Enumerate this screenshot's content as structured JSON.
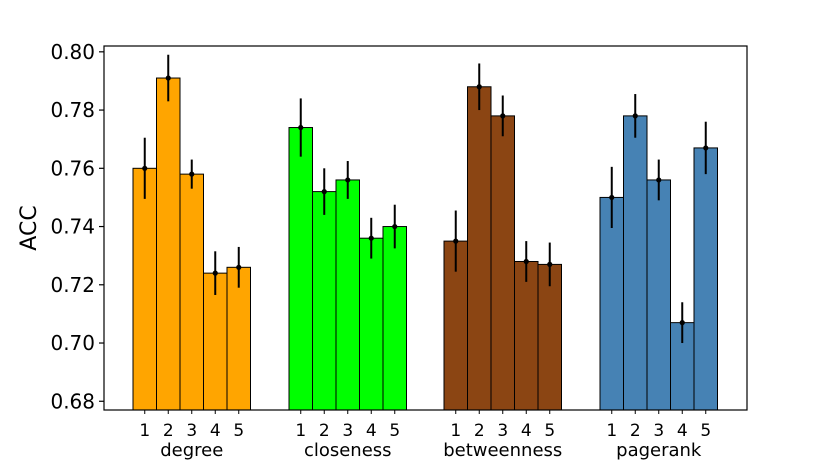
{
  "chart_data": {
    "type": "bar",
    "title": "",
    "xlabel": "",
    "ylabel": "ACC",
    "ylim": [
      0.677,
      0.802
    ],
    "yticks": [
      0.68,
      0.7,
      0.72,
      0.74,
      0.76,
      0.78,
      0.8
    ],
    "ytick_labels": [
      "0.68",
      "0.70",
      "0.72",
      "0.74",
      "0.76",
      "0.78",
      "0.80"
    ],
    "grid": false,
    "legend": "none",
    "groups": [
      {
        "name": "degree",
        "color": "#FFA500",
        "categories": [
          "1",
          "2",
          "3",
          "4",
          "5"
        ],
        "values": [
          0.76,
          0.791,
          0.758,
          0.724,
          0.726
        ],
        "errors": [
          0.0105,
          0.008,
          0.005,
          0.0075,
          0.007
        ]
      },
      {
        "name": "closeness",
        "color": "#00FF00",
        "categories": [
          "1",
          "2",
          "3",
          "4",
          "5"
        ],
        "values": [
          0.774,
          0.752,
          0.756,
          0.736,
          0.74
        ],
        "errors": [
          0.01,
          0.008,
          0.0065,
          0.007,
          0.0075
        ]
      },
      {
        "name": "betweenness",
        "color": "#8B4513",
        "categories": [
          "1",
          "2",
          "3",
          "4",
          "5"
        ],
        "values": [
          0.735,
          0.788,
          0.778,
          0.728,
          0.727
        ],
        "errors": [
          0.0105,
          0.008,
          0.007,
          0.007,
          0.0075
        ]
      },
      {
        "name": "pagerank",
        "color": "#4682B4",
        "categories": [
          "1",
          "2",
          "3",
          "4",
          "5"
        ],
        "values": [
          0.75,
          0.778,
          0.756,
          0.707,
          0.767
        ],
        "errors": [
          0.0105,
          0.0075,
          0.007,
          0.007,
          0.009
        ]
      }
    ]
  }
}
